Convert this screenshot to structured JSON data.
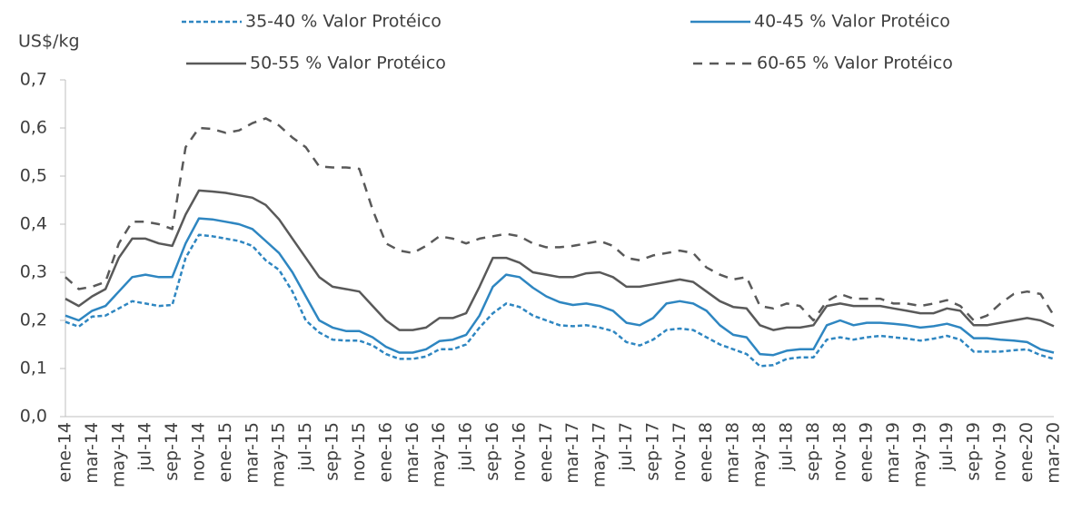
{
  "chart_data": {
    "type": "line",
    "y_label": "US$/kg",
    "categories": [
      "ene-14",
      null,
      "mar-14",
      null,
      "may-14",
      null,
      "jul-14",
      null,
      "sep-14",
      null,
      "nov-14",
      null,
      "ene-15",
      null,
      "mar-15",
      null,
      "may-15",
      null,
      "jul-15",
      null,
      "sep-15",
      null,
      "nov-15",
      null,
      "ene-16",
      null,
      "mar-16",
      null,
      "may-16",
      null,
      "jul-16",
      null,
      "sep-16",
      null,
      "nov-16",
      null,
      "ene-17",
      null,
      "mar-17",
      null,
      "may-17",
      null,
      "jul-17",
      null,
      "sep-17",
      null,
      "nov-17",
      null,
      "ene-18",
      null,
      "mar-18",
      null,
      "may-18",
      null,
      "jul-18",
      null,
      "sep-18",
      null,
      "nov-18",
      null,
      "ene-19",
      null,
      "mar-19",
      null,
      "may-19",
      null,
      "jul-19",
      null,
      "sep-19",
      null,
      "nov-19",
      null,
      "ene-20",
      null,
      "mar-20"
    ],
    "series": [
      {
        "name": "35-40 % Valor Protéico",
        "color": "#2e86c1",
        "dash": true,
        "values": [
          0.197,
          0.187,
          0.208,
          0.21,
          0.225,
          0.24,
          0.235,
          0.23,
          0.232,
          0.33,
          0.378,
          0.375,
          0.37,
          0.365,
          0.355,
          0.325,
          0.305,
          0.26,
          0.2,
          0.175,
          0.16,
          0.158,
          0.158,
          0.148,
          0.13,
          0.12,
          0.12,
          0.125,
          0.14,
          0.14,
          0.15,
          0.185,
          0.215,
          0.235,
          0.228,
          0.21,
          0.2,
          0.19,
          0.188,
          0.19,
          0.185,
          0.178,
          0.155,
          0.148,
          0.16,
          0.18,
          0.183,
          0.18,
          0.165,
          0.15,
          0.14,
          0.13,
          0.105,
          0.107,
          0.12,
          0.123,
          0.123,
          0.16,
          0.165,
          0.16,
          0.165,
          0.168,
          0.165,
          0.162,
          0.158,
          0.162,
          0.168,
          0.16,
          0.135,
          0.135,
          0.135,
          0.138,
          0.14,
          0.128,
          0.12
        ]
      },
      {
        "name": "40-45 % Valor Protéico",
        "color": "#2e86c1",
        "dash": false,
        "values": [
          0.21,
          0.2,
          0.22,
          0.23,
          0.26,
          0.29,
          0.295,
          0.29,
          0.29,
          0.36,
          0.412,
          0.41,
          0.405,
          0.4,
          0.39,
          0.365,
          0.34,
          0.3,
          0.25,
          0.2,
          0.185,
          0.178,
          0.178,
          0.165,
          0.145,
          0.133,
          0.133,
          0.14,
          0.157,
          0.16,
          0.17,
          0.21,
          0.27,
          0.295,
          0.29,
          0.268,
          0.25,
          0.238,
          0.232,
          0.235,
          0.23,
          0.22,
          0.195,
          0.19,
          0.205,
          0.235,
          0.24,
          0.235,
          0.22,
          0.19,
          0.17,
          0.165,
          0.13,
          0.128,
          0.137,
          0.14,
          0.14,
          0.19,
          0.2,
          0.19,
          0.195,
          0.195,
          0.193,
          0.19,
          0.185,
          0.188,
          0.193,
          0.185,
          0.163,
          0.163,
          0.16,
          0.158,
          0.155,
          0.14,
          0.133
        ]
      },
      {
        "name": "50-55 % Valor Protéico",
        "color": "#595959",
        "dash": false,
        "values": [
          0.245,
          0.23,
          0.25,
          0.265,
          0.33,
          0.37,
          0.37,
          0.36,
          0.355,
          0.42,
          0.47,
          0.468,
          0.465,
          0.46,
          0.455,
          0.44,
          0.41,
          0.37,
          0.33,
          0.29,
          0.27,
          0.265,
          0.26,
          0.23,
          0.2,
          0.18,
          0.18,
          0.185,
          0.205,
          0.205,
          0.215,
          0.27,
          0.33,
          0.33,
          0.32,
          0.3,
          0.295,
          0.29,
          0.29,
          0.298,
          0.3,
          0.29,
          0.27,
          0.27,
          0.275,
          0.28,
          0.285,
          0.28,
          0.26,
          0.24,
          0.228,
          0.225,
          0.19,
          0.18,
          0.185,
          0.185,
          0.19,
          0.23,
          0.235,
          0.23,
          0.23,
          0.23,
          0.225,
          0.22,
          0.215,
          0.215,
          0.225,
          0.22,
          0.19,
          0.19,
          0.195,
          0.2,
          0.205,
          0.2,
          0.188
        ]
      },
      {
        "name": "60-65 % Valor Protéico",
        "color": "#595959",
        "dash": true,
        "values": [
          0.29,
          0.265,
          0.27,
          0.28,
          0.36,
          0.405,
          0.405,
          0.4,
          0.39,
          0.56,
          0.6,
          0.598,
          0.59,
          0.595,
          0.61,
          0.62,
          0.605,
          0.58,
          0.56,
          0.52,
          0.518,
          0.518,
          0.515,
          0.43,
          0.36,
          0.345,
          0.34,
          0.355,
          0.375,
          0.37,
          0.36,
          0.37,
          0.375,
          0.38,
          0.375,
          0.36,
          0.352,
          0.352,
          0.355,
          0.36,
          0.365,
          0.355,
          0.33,
          0.325,
          0.335,
          0.34,
          0.345,
          0.34,
          0.31,
          0.295,
          0.285,
          0.29,
          0.23,
          0.225,
          0.235,
          0.23,
          0.2,
          0.24,
          0.255,
          0.245,
          0.245,
          0.245,
          0.235,
          0.235,
          0.23,
          0.235,
          0.242,
          0.23,
          0.2,
          0.21,
          0.235,
          0.255,
          0.26,
          0.255,
          0.21
        ]
      }
    ],
    "ylim": [
      0,
      0.7
    ],
    "yticks": [
      {
        "value": 0,
        "label": "0,0"
      },
      {
        "value": 0.1,
        "label": "0,1"
      },
      {
        "value": 0.2,
        "label": "0,2"
      },
      {
        "value": 0.3,
        "label": "0,3"
      },
      {
        "value": 0.4,
        "label": "0,4"
      },
      {
        "value": 0.5,
        "label": "0,5"
      },
      {
        "value": 0.6,
        "label": "0,6"
      },
      {
        "value": 0.7,
        "label": "0,7"
      }
    ]
  }
}
